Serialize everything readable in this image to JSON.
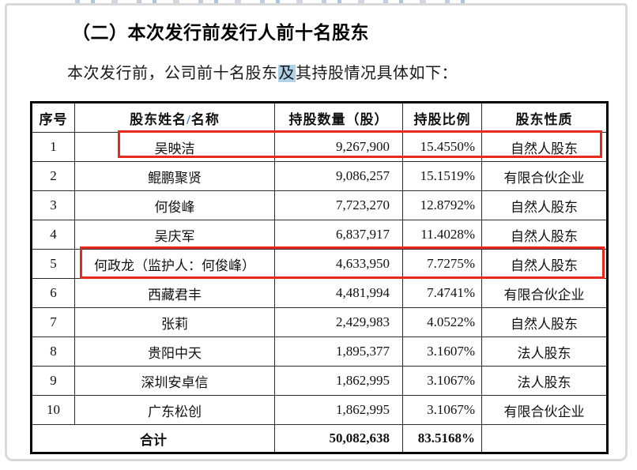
{
  "page": {
    "section_heading": "（二）本次发行前发行人前十名股东",
    "intro": {
      "before_highlight": "本次发行前，公司前十名股东",
      "highlighted": "及",
      "after_highlight": "其持股情况具体如下："
    }
  },
  "table": {
    "headers": [
      "序号",
      "股东姓名/名称",
      "持股数量（股）",
      "持股比例",
      "股东性质"
    ],
    "name_header_parts": {
      "left": "股东姓名",
      "slash": "/",
      "right": "名称"
    },
    "rows": [
      {
        "no": "1",
        "name": "吴映洁",
        "shares": "9,267,900",
        "ratio": "15.4550%",
        "nature": "自然人股东",
        "red_boxed": true
      },
      {
        "no": "2",
        "name": "鲲鹏聚贤",
        "shares": "9,086,257",
        "ratio": "15.1519%",
        "nature": "有限合伙企业",
        "red_boxed": false
      },
      {
        "no": "3",
        "name": "何俊峰",
        "shares": "7,723,270",
        "ratio": "12.8792%",
        "nature": "自然人股东",
        "red_boxed": false
      },
      {
        "no": "4",
        "name": "吴庆军",
        "shares": "6,837,917",
        "ratio": "11.4028%",
        "nature": "自然人股东",
        "red_boxed": false
      },
      {
        "no": "5",
        "name": "何政龙（监护人：何俊峰）",
        "shares": "4,633,950",
        "ratio": "7.7275%",
        "nature": "自然人股东",
        "red_boxed": true
      },
      {
        "no": "6",
        "name": "西藏君丰",
        "shares": "4,481,994",
        "ratio": "7.4741%",
        "nature": "有限合伙企业",
        "red_boxed": false
      },
      {
        "no": "7",
        "name": "张莉",
        "shares": "2,429,983",
        "ratio": "4.0522%",
        "nature": "自然人股东",
        "red_boxed": false
      },
      {
        "no": "8",
        "name": "贵阳中天",
        "shares": "1,895,377",
        "ratio": "3.1607%",
        "nature": "法人股东",
        "red_boxed": false
      },
      {
        "no": "9",
        "name": "深圳安卓信",
        "shares": "1,862,995",
        "ratio": "3.1067%",
        "nature": "法人股东",
        "red_boxed": false
      },
      {
        "no": "10",
        "name": "广东松创",
        "shares": "1,862,995",
        "ratio": "3.1067%",
        "nature": "有限合伙企业",
        "red_boxed": false
      }
    ],
    "total": {
      "label": "合计",
      "shares": "50,082,638",
      "ratio": "83.5168%",
      "nature": ""
    }
  },
  "annotations": {
    "red_box_color": "#e8291c",
    "selection_color": "#aed2e8",
    "slash_color": "#2b6cb8"
  }
}
